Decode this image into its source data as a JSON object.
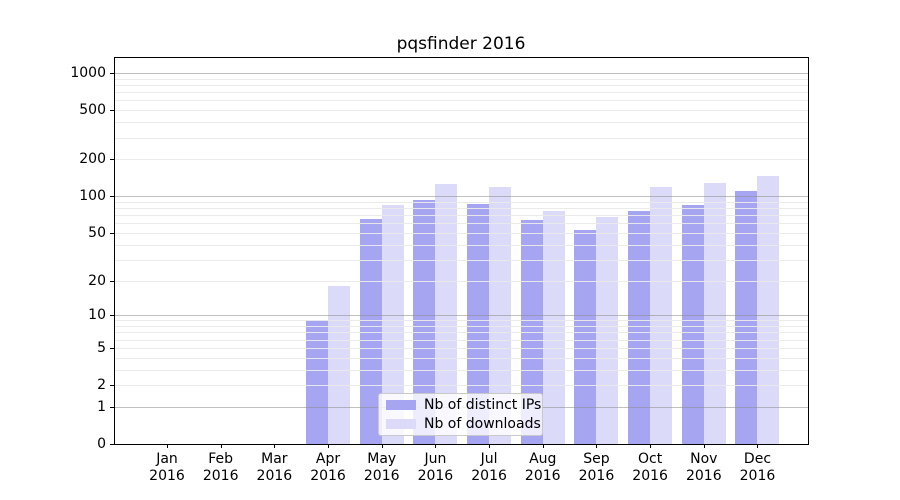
{
  "title": "pqsfinder 2016",
  "chart_data": {
    "type": "bar",
    "title": "pqsfinder 2016",
    "categories": [
      "Jan",
      "Feb",
      "Mar",
      "Apr",
      "May",
      "Jun",
      "Jul",
      "Aug",
      "Sep",
      "Oct",
      "Nov",
      "Dec"
    ],
    "x_tick_second_line": "2016",
    "series": [
      {
        "name": "Nb of distinct IPs",
        "color": "#a5a5f2",
        "values": [
          0,
          0,
          0,
          9,
          65,
          93,
          87,
          64,
          53,
          75,
          84,
          110
        ]
      },
      {
        "name": "Nb of downloads",
        "color": "#dbdbf9",
        "values": [
          0,
          0,
          0,
          18,
          84,
          126,
          118,
          76,
          67,
          119,
          128,
          145
        ]
      }
    ],
    "y_scale": "log1p",
    "ylim": [
      0,
      1330
    ],
    "y_ticks": [
      0,
      1,
      2,
      5,
      10,
      20,
      50,
      100,
      200,
      500,
      1000
    ],
    "y_tick_labels": [
      "0",
      "1",
      "2",
      "5",
      "10",
      "20",
      "50",
      "100",
      "200",
      "500",
      "1000"
    ],
    "y_major_gridlines": [
      1,
      10,
      100,
      1000
    ],
    "y_minor_gridlines": [
      2,
      3,
      4,
      5,
      6,
      7,
      8,
      9,
      20,
      30,
      40,
      50,
      60,
      70,
      80,
      90,
      200,
      300,
      400,
      500,
      600,
      700,
      800,
      900
    ],
    "grid": true,
    "legend_position": "lower center"
  },
  "colors": {
    "bar_ips": "#a5a5f2",
    "bar_downloads": "#dbdbf9",
    "grid_major": "rgba(140,140,140,0.55)",
    "grid_minor": "rgba(234,234,234,0.95)",
    "spine": "#000000",
    "legend_border": "#c9c9c9",
    "legend_bg": "rgba(255,255,255,0.8)",
    "text": "#000000"
  }
}
